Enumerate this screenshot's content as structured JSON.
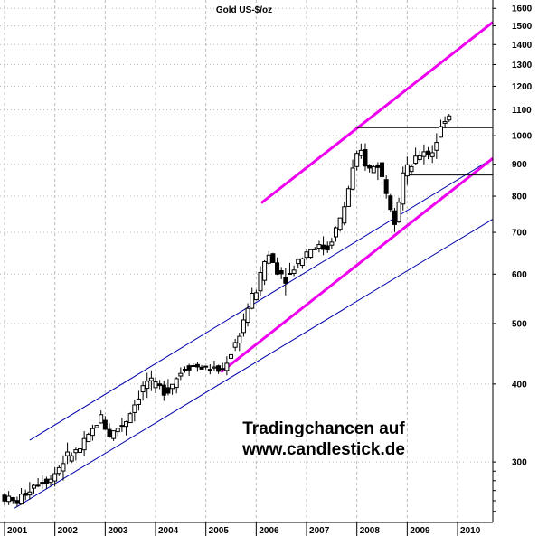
{
  "chart_data": {
    "type": "candlestick",
    "title": "Gold US-$/oz",
    "y_scale": "log",
    "ylim": [
      240,
      1650
    ],
    "xlim": [
      2001.0,
      2010.7
    ],
    "x_ticks": [
      "2001",
      "2002",
      "2003",
      "2004",
      "2005",
      "2006",
      "2007",
      "2008",
      "2009",
      "2010"
    ],
    "y_ticks": [
      300,
      400,
      500,
      600,
      700,
      800,
      900,
      1000,
      1100,
      1200,
      1300,
      1400,
      1500,
      1600
    ],
    "grid": true,
    "price_path": [
      [
        2001.0,
        265
      ],
      [
        2001.3,
        258
      ],
      [
        2001.7,
        278
      ],
      [
        2002.0,
        282
      ],
      [
        2002.3,
        305
      ],
      [
        2002.6,
        315
      ],
      [
        2003.0,
        355
      ],
      [
        2003.15,
        330
      ],
      [
        2003.5,
        350
      ],
      [
        2003.9,
        405
      ],
      [
        2004.0,
        400
      ],
      [
        2004.3,
        390
      ],
      [
        2004.7,
        430
      ],
      [
        2005.0,
        425
      ],
      [
        2005.4,
        420
      ],
      [
        2005.7,
        470
      ],
      [
        2005.95,
        540
      ],
      [
        2006.1,
        570
      ],
      [
        2006.3,
        650
      ],
      [
        2006.5,
        610
      ],
      [
        2006.7,
        590
      ],
      [
        2006.9,
        630
      ],
      [
        2007.2,
        665
      ],
      [
        2007.5,
        660
      ],
      [
        2007.8,
        750
      ],
      [
        2008.0,
        880
      ],
      [
        2008.15,
        950
      ],
      [
        2008.3,
        880
      ],
      [
        2008.5,
        900
      ],
      [
        2008.7,
        800
      ],
      [
        2008.85,
        730
      ],
      [
        2009.0,
        870
      ],
      [
        2009.2,
        900
      ],
      [
        2009.4,
        950
      ],
      [
        2009.55,
        930
      ],
      [
        2009.7,
        1000
      ],
      [
        2009.85,
        1080
      ]
    ],
    "trendlines": [
      {
        "color": "#0000aa",
        "points": [
          [
            2001.2,
            253
          ],
          [
            2010.7,
            735
          ]
        ]
      },
      {
        "color": "#0000aa",
        "points": [
          [
            2001.5,
            325
          ],
          [
            2010.7,
            920
          ]
        ]
      },
      {
        "color": "#ee00ee",
        "points": [
          [
            2006.1,
            780
          ],
          [
            2010.7,
            1520
          ]
        ]
      },
      {
        "color": "#ee00ee",
        "points": [
          [
            2005.3,
            418
          ],
          [
            2010.7,
            920
          ]
        ]
      }
    ],
    "horizontal_lines": [
      {
        "y": 1030,
        "x_start": 2008.0,
        "x_end": 2010.7
      },
      {
        "y": 865,
        "x_start": 2009.0,
        "x_end": 2010.7
      }
    ]
  },
  "watermark": {
    "line1": "Tradingchancen auf",
    "line2": "www.candlestick.de"
  }
}
